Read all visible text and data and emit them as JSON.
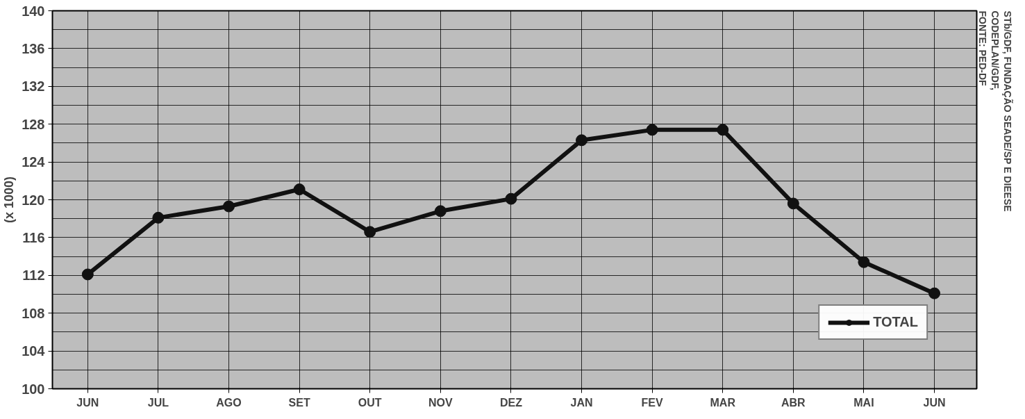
{
  "chart_data": {
    "type": "line",
    "ylabel": "(x 1000)",
    "categories": [
      "JUN",
      "JUL",
      "AGO",
      "SET",
      "OUT",
      "NOV",
      "DEZ",
      "JAN",
      "FEV",
      "MAR",
      "ABR",
      "MAI",
      "JUN"
    ],
    "series": [
      {
        "name": "TOTAL",
        "color": "#111111",
        "values": [
          112.1,
          118.1,
          119.3,
          121.1,
          116.6,
          118.8,
          120.1,
          126.3,
          127.4,
          127.4,
          119.6,
          113.4,
          110.1
        ]
      }
    ],
    "ylim": [
      100,
      140
    ],
    "yticks": [
      100,
      104,
      108,
      112,
      116,
      120,
      124,
      128,
      132,
      136,
      140
    ],
    "grid": true,
    "legend": "bottom right",
    "marker": "circle",
    "line_style": "solid",
    "annotations": [
      "FONTE: PED-DF\nCODEPLAN/GDF,\nSTb/GDF, FUNDAÇÃO SEADE/SP E DIEESE"
    ]
  }
}
